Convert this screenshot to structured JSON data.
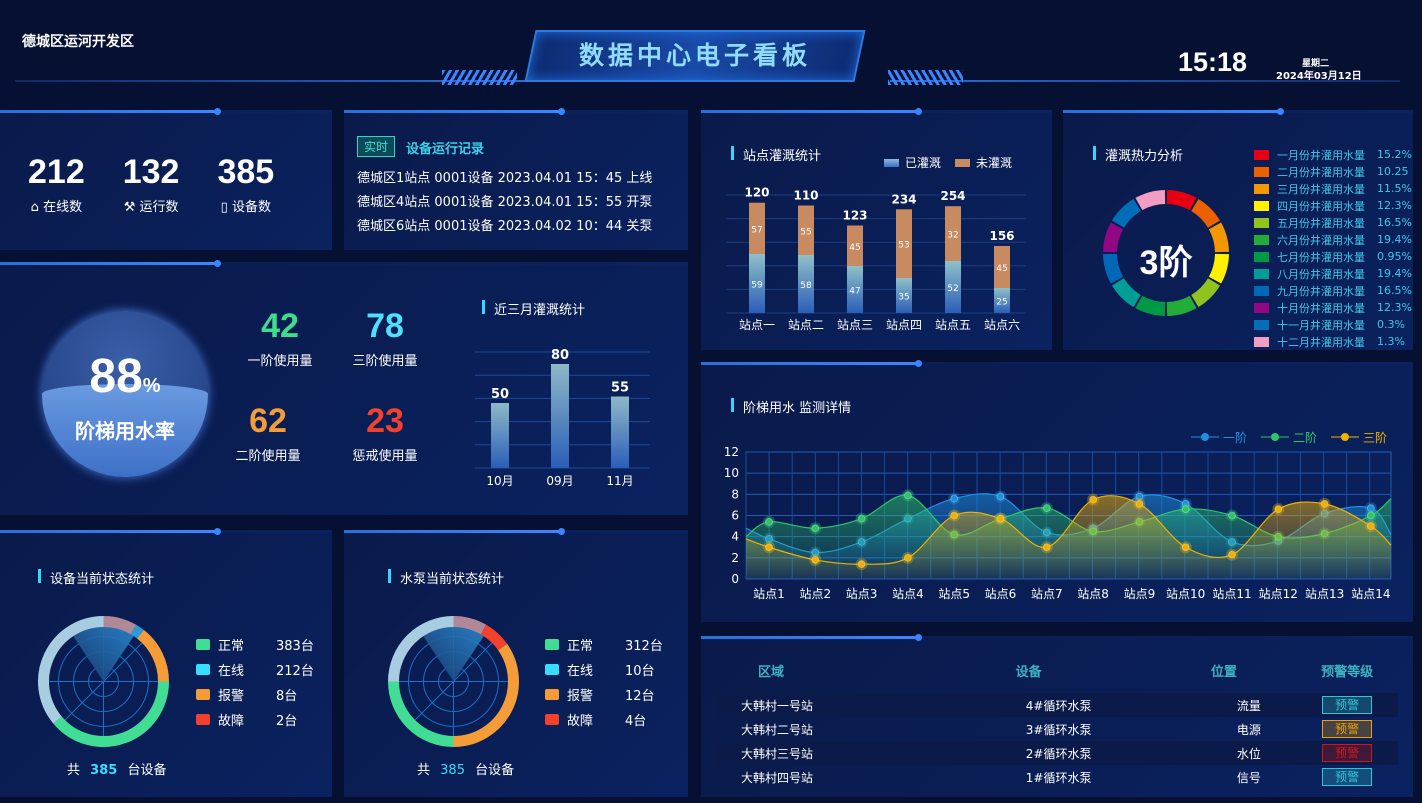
{
  "header": {
    "location": "德城区运河开发区",
    "title": "数据中心电子看板",
    "time": "15:18",
    "weekday": "星期二",
    "date": "2024年03月12日"
  },
  "stats": [
    {
      "value": "212",
      "label": "在线数",
      "icon": "home-icon"
    },
    {
      "value": "132",
      "label": "运行数",
      "icon": "wrench-icon"
    },
    {
      "value": "385",
      "label": "设备数",
      "icon": "device-icon"
    }
  ],
  "records": {
    "badge": "实时",
    "title": "设备运行记录",
    "items": [
      "德城区1站点  0001设备   2023.04.01 15：45 上线",
      "德城区4站点  0001设备   2023.04.01 15：55 开泵",
      "德城区6站点  0001设备   2023.04.02 10：44 关泵"
    ]
  },
  "ladder": {
    "rate_value": "88",
    "rate_unit": "%",
    "rate_label": "阶梯用水率",
    "rate": 0.88,
    "usage": [
      {
        "value": "42",
        "label": "一阶使用量",
        "color": "#3fdc8c"
      },
      {
        "value": "78",
        "label": "三阶使用量",
        "color": "#4ee0ff"
      },
      {
        "value": "62",
        "label": "二阶使用量",
        "color": "#f39c38"
      },
      {
        "value": "23",
        "label": "惩戒使用量",
        "color": "#f2412c"
      }
    ]
  },
  "chart_data": [
    {
      "type": "bar",
      "title": "近三月灌溉统计",
      "categories": [
        "10月",
        "09月",
        "11月"
      ],
      "values": [
        50,
        80,
        55
      ]
    },
    {
      "type": "bar",
      "title": "站点灌溉统计",
      "legend": [
        "已灌溉",
        "未灌溉"
      ],
      "categories": [
        "站点一",
        "站点二",
        "站点三",
        "站点四",
        "站点五",
        "站点六"
      ],
      "totals": [
        120,
        110,
        123,
        234,
        254,
        156
      ],
      "series": [
        {
          "name": "已灌溉",
          "values": [
            59,
            58,
            47,
            35,
            52,
            25
          ]
        },
        {
          "name": "未灌溉",
          "values": [
            57,
            55,
            45,
            53,
            32,
            45
          ]
        }
      ]
    },
    {
      "type": "pie",
      "title": "灌溉热力分析",
      "center_label": "3阶",
      "labels": [
        "一月份井灌用水量",
        "二月份井灌用水量",
        "三月份井灌用水量",
        "四月份井灌用水量",
        "五月份井灌用水量",
        "六月份井灌用水量",
        "七月份井灌用水量",
        "八月份井灌用水量",
        "九月份井灌用水量",
        "十月份井灌用水量",
        "十一月井灌用水量",
        "十二月井灌用水量"
      ],
      "values": [
        "15.2%",
        "10.25",
        "11.5%",
        "12.3%",
        "16.5%",
        "19.4%",
        "0.95%",
        "19.4%",
        "16.5%",
        "12.3%",
        "0.3%",
        "1.3%"
      ],
      "colors": [
        "#e60012",
        "#eb6100",
        "#f39800",
        "#fff100",
        "#8fc31f",
        "#22ac38",
        "#009944",
        "#009e96",
        "#0068b7",
        "#920783",
        "#036eb8",
        "#f19ec2"
      ]
    },
    {
      "type": "area",
      "title": "阶梯用水 监测详情",
      "categories": [
        "站点1",
        "站点2",
        "站点3",
        "站点4",
        "站点5",
        "站点6",
        "站点7",
        "站点8",
        "站点9",
        "站点10",
        "站点11",
        "站点12",
        "站点13",
        "站点14"
      ],
      "ylim": [
        0,
        12
      ],
      "yticks": [
        0,
        2,
        4,
        6,
        8,
        10,
        12
      ],
      "legend_position": "top-right",
      "series": [
        {
          "name": "一阶",
          "color": "#1e90e0",
          "values": [
            3.8,
            2.5,
            3.5,
            5.7,
            7.6,
            7.8,
            4.4,
            4.8,
            7.8,
            7.1,
            3.5,
            3.6,
            6.2,
            6.7
          ]
        },
        {
          "name": "二阶",
          "color": "#2ec56a",
          "values": [
            5.4,
            4.8,
            5.7,
            7.9,
            4.2,
            5.7,
            6.7,
            4.5,
            5.4,
            6.6,
            6.0,
            4.0,
            4.3,
            6.0
          ]
        },
        {
          "name": "三阶",
          "color": "#f0b000",
          "values": [
            3.0,
            1.8,
            1.4,
            2.0,
            6.0,
            5.7,
            3.0,
            7.5,
            7.1,
            3.0,
            2.3,
            6.6,
            7.1,
            5.0
          ]
        }
      ]
    }
  ],
  "device_status": {
    "title": "设备当前状态统计",
    "items": [
      {
        "label": "正常",
        "count": "383台",
        "color": "#42dd95"
      },
      {
        "label": "在线",
        "count": "212台",
        "color": "#38dcff"
      },
      {
        "label": "报警",
        "count": "8台",
        "color": "#f39c38"
      },
      {
        "label": "故障",
        "count": "2台",
        "color": "#f2412c"
      }
    ],
    "total_prefix": "共",
    "total": "385",
    "total_suffix": "台设备"
  },
  "pump_status": {
    "title": "水泵当前状态统计",
    "items": [
      {
        "label": "正常",
        "count": "312台",
        "color": "#42dd95"
      },
      {
        "label": "在线",
        "count": "10台",
        "color": "#38dcff"
      },
      {
        "label": "报警",
        "count": "12台",
        "color": "#f39c38"
      },
      {
        "label": "故障",
        "count": "4台",
        "color": "#f2412c"
      }
    ],
    "total_prefix": "共",
    "total": "385",
    "total_suffix": "台设备"
  },
  "alerts": {
    "headers": [
      "区域",
      "设备",
      "位置",
      "预警等级"
    ],
    "rows": [
      {
        "area": "大韩村一号站",
        "device": "4#循环水泵",
        "position": "流量",
        "level": "预警",
        "level_color": "#2fc6d8"
      },
      {
        "area": "大韩村二号站",
        "device": "3#循环水泵",
        "position": "电源",
        "level": "预警",
        "level_color": "#f0a000"
      },
      {
        "area": "大韩村三号站",
        "device": "2#循环水泵",
        "position": "水位",
        "level": "预警",
        "level_color": "#d01818"
      },
      {
        "area": "大韩村四号站",
        "device": "1#循环水泵",
        "position": "信号",
        "level": "预警",
        "level_color": "#2fc6d8"
      }
    ]
  }
}
